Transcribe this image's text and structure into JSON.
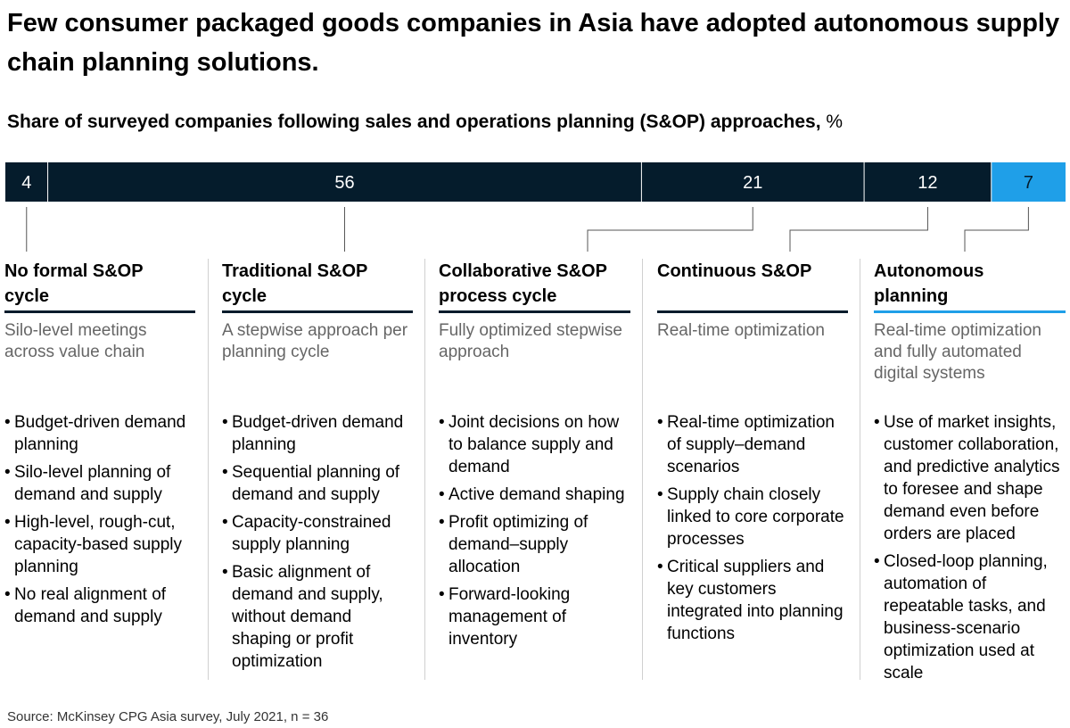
{
  "title": "Few consumer packaged goods companies in Asia have adopted autonomous supply chain planning solutions.",
  "subtitle": "Share of surveyed companies following sales and operations planning (S&OP) approaches,",
  "subtitle_unit": "%",
  "colors": {
    "dark": "#051c2c",
    "accent": "#1f9fe8",
    "text_on_bar": "#ffffff"
  },
  "chart_data": {
    "type": "bar",
    "orientation": "horizontal-stacked",
    "categories": [
      "No formal S&OP cycle",
      "Traditional S&OP cycle",
      "Collaborative S&OP process cycle",
      "Continuous S&OP",
      "Autonomous planning"
    ],
    "values": [
      4,
      56,
      21,
      12,
      7
    ],
    "labels": [
      "4",
      "56",
      "21",
      "12",
      "7"
    ],
    "unit": "%",
    "highlight_index": 4
  },
  "columns": [
    {
      "title_lines": [
        "No formal S&OP",
        "cycle"
      ],
      "description": "Silo-level meetings across value chain",
      "bullets": [
        "Budget-driven demand planning",
        "Silo-level planning of demand and supply",
        "High-level, rough-cut, capacity-based supply planning",
        "No real alignment of demand and supply"
      ]
    },
    {
      "title_lines": [
        "Traditional S&OP",
        "cycle"
      ],
      "description": "A stepwise approach per planning cycle",
      "bullets": [
        "Budget-driven demand planning",
        "Sequential planning of demand and supply",
        "Capacity-constrained supply planning",
        "Basic alignment of demand and supply, without demand shaping or profit optimization"
      ]
    },
    {
      "title_lines": [
        "Collaborative S&OP",
        "process cycle"
      ],
      "description": "Fully optimized stepwise approach",
      "bullets": [
        "Joint decisions on how to balance supply and demand",
        "Active demand shaping",
        "Profit optimizing of demand–supply allocation",
        "Forward-looking management of inventory"
      ]
    },
    {
      "title_lines": [
        "Continuous S&OP",
        ""
      ],
      "description": "Real-time optimization",
      "bullets": [
        "Real-time optimization of supply–demand scenarios",
        "Supply chain closely linked to core corporate processes",
        "Critical suppliers and key customers integrated into planning functions"
      ]
    },
    {
      "title_lines": [
        "Autonomous",
        "planning"
      ],
      "description": "Real-time optimization and fully automated digital systems",
      "bullets": [
        "Use of market insights, customer collaboration, and predictive analytics to foresee and shape demand even before orders are placed",
        "Closed-loop planning, automation of repeatable tasks, and business-scenario optimization used at scale"
      ]
    }
  ],
  "source": "Source: McKinsey CPG Asia survey, July 2021, n = 36"
}
